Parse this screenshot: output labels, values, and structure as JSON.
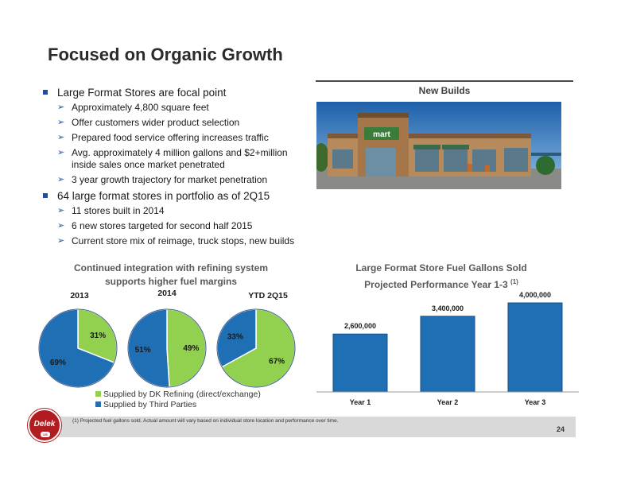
{
  "title": "Focused on Organic Growth",
  "bullets": [
    {
      "text": "Large Format Stores are focal point",
      "sub": [
        "Approximately 4,800 square feet",
        "Offer customers wider product selection",
        "Prepared food service offering increases traffic",
        "Avg. approximately 4 million gallons and $2+million inside sales once market penetrated",
        "3 year growth trajectory for market penetration"
      ]
    },
    {
      "text": "64 large format stores in portfolio as of 2Q15",
      "sub": [
        "11 stores built in 2014",
        "6 new stores targeted for second half 2015",
        "Current store mix of reimage, truck stops, new builds"
      ]
    }
  ],
  "photo_label": "New Builds",
  "photo_sign": "mart",
  "pies_title_line1": "Continued integration with refining system",
  "pies_title_line2": "supports higher fuel margins",
  "bar_title_line1": "Large Format Store Fuel Gallons Sold",
  "bar_title_line2": "Projected Performance Year 1-3",
  "bar_title_note": "(1)",
  "legend": [
    "Supplied by DK Refining (direct/exchange)",
    "Supplied by Third Parties"
  ],
  "colors": {
    "dk_refining": "#92d050",
    "third_parties": "#1f6fb5",
    "bar": "#1f6fb5"
  },
  "footnote": "(1)     Projected fuel gallons sold. Actual amount will vary based on individual store location and performance over time.",
  "page_number": "24",
  "logo_text": "Delek",
  "logo_sub": "US",
  "chart_data": [
    {
      "type": "pie",
      "title": "2013",
      "categories": [
        "Supplied by DK Refining (direct/exchange)",
        "Supplied by Third Parties"
      ],
      "values": [
        31,
        69
      ],
      "labels": [
        "31%",
        "69%"
      ]
    },
    {
      "type": "pie",
      "title": "2014",
      "categories": [
        "Supplied by DK Refining (direct/exchange)",
        "Supplied by Third Parties"
      ],
      "values": [
        49,
        51
      ],
      "labels": [
        "49%",
        "51%"
      ]
    },
    {
      "type": "pie",
      "title": "YTD 2Q15",
      "categories": [
        "Supplied by DK Refining (direct/exchange)",
        "Supplied by Third Parties"
      ],
      "values": [
        67,
        33
      ],
      "labels": [
        "67%",
        "33%"
      ]
    },
    {
      "type": "bar",
      "title": "Large Format Store Fuel Gallons Sold Projected Performance Year 1-3 (1)",
      "categories": [
        "Year 1",
        "Year 2",
        "Year 3"
      ],
      "values": [
        2600000,
        3400000,
        4000000
      ],
      "labels": [
        "2,600,000",
        "3,400,000",
        "4,000,000"
      ],
      "ylim": [
        0,
        4000000
      ]
    }
  ]
}
